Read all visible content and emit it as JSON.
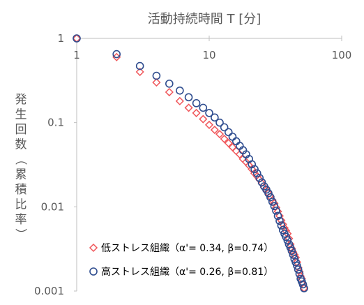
{
  "chart_data": {
    "type": "scatter",
    "title": "活動持続時間 T [分]",
    "xlabel": "活動持続時間 T [分]",
    "ylabel": "発生回数（累積比率）",
    "xscale": "log",
    "yscale": "log",
    "xlim": [
      1,
      100
    ],
    "ylim": [
      0.001,
      1
    ],
    "x_ticks": [
      "1",
      "10",
      "100"
    ],
    "y_ticks": [
      "1",
      "0.1",
      "0.01",
      "0.001"
    ],
    "x_axis_position": "top",
    "grid": false,
    "legend_position": "bottom-left",
    "series": [
      {
        "name": "低ストレス組織（α'= 0.34, β=0.74）",
        "marker": "diamond",
        "color": "#F0565A",
        "points": [
          [
            1,
            1
          ],
          [
            2,
            0.6
          ],
          [
            3,
            0.4
          ],
          [
            4,
            0.3
          ],
          [
            5,
            0.23
          ],
          [
            6,
            0.18
          ],
          [
            7,
            0.15
          ],
          [
            8,
            0.13
          ],
          [
            9,
            0.11
          ],
          [
            10,
            0.094
          ],
          [
            11,
            0.082
          ],
          [
            12,
            0.073
          ],
          [
            13,
            0.064
          ],
          [
            14,
            0.057
          ],
          [
            15,
            0.051
          ],
          [
            16,
            0.046
          ],
          [
            17,
            0.042
          ],
          [
            18,
            0.037
          ],
          [
            19,
            0.034
          ],
          [
            20,
            0.031
          ],
          [
            21,
            0.028
          ],
          [
            22,
            0.025
          ],
          [
            23,
            0.023
          ],
          [
            24,
            0.021
          ],
          [
            25,
            0.019
          ],
          [
            26,
            0.017
          ],
          [
            27,
            0.0158
          ],
          [
            28,
            0.0145
          ],
          [
            29,
            0.0132
          ],
          [
            30,
            0.012
          ],
          [
            31,
            0.011
          ],
          [
            32,
            0.0098
          ],
          [
            33,
            0.0088
          ],
          [
            34,
            0.0078
          ],
          [
            35,
            0.0069
          ],
          [
            36,
            0.0062
          ],
          [
            37,
            0.0056
          ],
          [
            38,
            0.0052
          ],
          [
            39,
            0.0048
          ],
          [
            40,
            0.0042
          ],
          [
            41,
            0.0036
          ],
          [
            42,
            0.0032
          ],
          [
            43,
            0.0029
          ],
          [
            44,
            0.0027
          ],
          [
            45,
            0.0025
          ],
          [
            46,
            0.0022
          ],
          [
            47,
            0.0019
          ],
          [
            48,
            0.0017
          ],
          [
            49,
            0.0015
          ],
          [
            50,
            0.0014
          ],
          [
            51,
            0.0012
          ],
          [
            52,
            0.00108
          ]
        ]
      },
      {
        "name": "高ストレス組織（α'= 0.26, β=0.81）",
        "marker": "circle",
        "color": "#2F4D8F",
        "points": [
          [
            1,
            1
          ],
          [
            2,
            0.65
          ],
          [
            3,
            0.47
          ],
          [
            4,
            0.36
          ],
          [
            5,
            0.29
          ],
          [
            6,
            0.24
          ],
          [
            7,
            0.2
          ],
          [
            8,
            0.17
          ],
          [
            9,
            0.15
          ],
          [
            10,
            0.13
          ],
          [
            11,
            0.115
          ],
          [
            12,
            0.1
          ],
          [
            13,
            0.088
          ],
          [
            14,
            0.077
          ],
          [
            15,
            0.068
          ],
          [
            16,
            0.06
          ],
          [
            17,
            0.053
          ],
          [
            18,
            0.047
          ],
          [
            19,
            0.042
          ],
          [
            20,
            0.037
          ],
          [
            21,
            0.032
          ],
          [
            22,
            0.028
          ],
          [
            23,
            0.025
          ],
          [
            24,
            0.022
          ],
          [
            25,
            0.0195
          ],
          [
            26,
            0.0175
          ],
          [
            27,
            0.016
          ],
          [
            28,
            0.0145
          ],
          [
            29,
            0.013
          ],
          [
            30,
            0.0115
          ],
          [
            31,
            0.0102
          ],
          [
            32,
            0.009
          ],
          [
            33,
            0.0078
          ],
          [
            34,
            0.0068
          ],
          [
            35,
            0.006
          ],
          [
            36,
            0.0053
          ],
          [
            37,
            0.0048
          ],
          [
            38,
            0.0044
          ],
          [
            39,
            0.004
          ],
          [
            40,
            0.0036
          ],
          [
            41,
            0.0033
          ],
          [
            42,
            0.003
          ],
          [
            43,
            0.0027
          ],
          [
            44,
            0.0024
          ],
          [
            45,
            0.0022
          ],
          [
            46,
            0.002
          ],
          [
            47,
            0.0018
          ],
          [
            48,
            0.0016
          ],
          [
            49,
            0.0014
          ],
          [
            50,
            0.0013
          ],
          [
            51,
            0.0012
          ],
          [
            52,
            0.00108
          ]
        ]
      }
    ]
  }
}
